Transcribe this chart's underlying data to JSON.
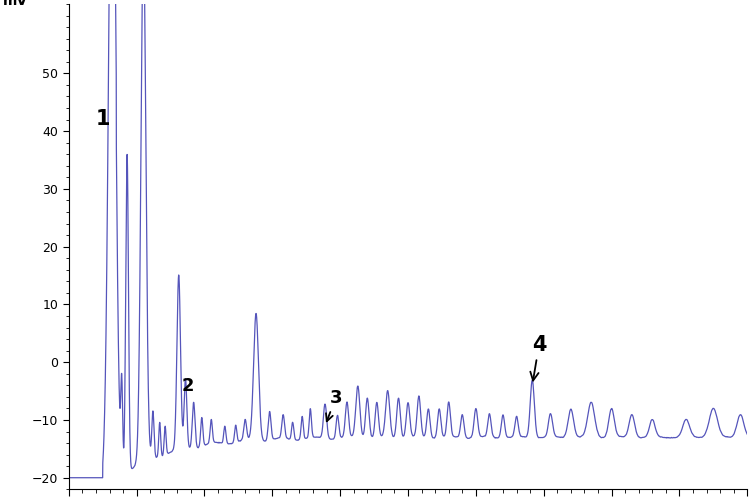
{
  "ylabel": "mV",
  "ylim": [
    -22,
    62
  ],
  "yticks": [
    -20,
    -10,
    0,
    10,
    20,
    30,
    40,
    50
  ],
  "xlim": [
    0,
    50
  ],
  "line_color": "#5555bb",
  "background_color": "#ffffff",
  "peak1_rt": 4.296,
  "peak1_label": "1",
  "peak1_height": 41,
  "peak2_rt": 8.101,
  "peak2_label": "2",
  "peak2_height": 15,
  "peak3_rt": 18.885,
  "peak3_label": "3",
  "peak4_rt": 34.158,
  "peak4_label": "4"
}
